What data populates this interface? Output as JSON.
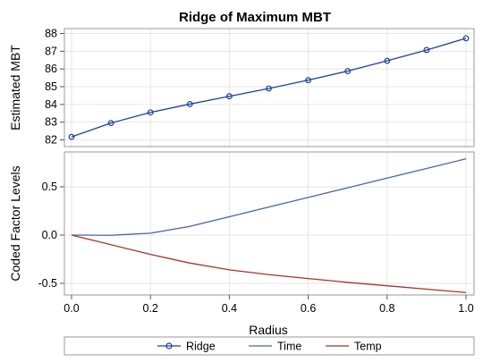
{
  "chart_data": {
    "type": "line",
    "title": "Ridge of Maximum MBT",
    "xlabel": "Radius",
    "xlim": [
      0.0,
      1.0
    ],
    "xticks": [
      0.0,
      0.2,
      0.4,
      0.6,
      0.8,
      1.0
    ],
    "xtick_labels": [
      "0.0",
      "0.2",
      "0.4",
      "0.6",
      "0.8",
      "1.0"
    ],
    "grid": true,
    "legend_position": "bottom",
    "legend": [
      {
        "name": "Ridge",
        "color": "#1f3f9e",
        "marker": "circle"
      },
      {
        "name": "Time",
        "color": "#4a66a6",
        "marker": "none"
      },
      {
        "name": "Temp",
        "color": "#a8322b",
        "marker": "none"
      }
    ],
    "panels": [
      {
        "ylabel": "Estimated MBT",
        "ylim": [
          81.8,
          88.3
        ],
        "yticks": [
          82,
          83,
          84,
          85,
          86,
          87,
          88
        ],
        "ytick_labels": [
          "82",
          "83",
          "84",
          "85",
          "86",
          "87",
          "88"
        ],
        "series": [
          {
            "name": "Ridge",
            "color": "#1f3f9e",
            "marker": "circle",
            "x": [
              0.0,
              0.1,
              0.2,
              0.3,
              0.4,
              0.5,
              0.6,
              0.7,
              0.8,
              0.9,
              1.0
            ],
            "y": [
              82.17,
              82.95,
              83.55,
              84.02,
              84.46,
              84.9,
              85.37,
              85.88,
              86.46,
              87.07,
              87.73
            ]
          }
        ]
      },
      {
        "ylabel": "Coded Factor Levels",
        "ylim": [
          -0.6,
          0.82
        ],
        "yticks": [
          -0.5,
          0.0,
          0.5
        ],
        "ytick_labels": [
          "-0.5",
          "0.0",
          "0.5"
        ],
        "series": [
          {
            "name": "Time",
            "color": "#4a66a6",
            "x": [
              0.0,
              0.1,
              0.2,
              0.3,
              0.4,
              0.5,
              0.6,
              0.7,
              0.8,
              0.9,
              1.0
            ],
            "y": [
              0.0,
              -0.002,
              0.02,
              0.09,
              0.19,
              0.29,
              0.39,
              0.49,
              0.59,
              0.69,
              0.79
            ]
          },
          {
            "name": "Temp",
            "color": "#a8322b",
            "x": [
              0.0,
              0.1,
              0.2,
              0.3,
              0.4,
              0.5,
              0.6,
              0.7,
              0.8,
              0.9,
              1.0
            ],
            "y": [
              0.0,
              -0.1,
              -0.2,
              -0.29,
              -0.36,
              -0.41,
              -0.45,
              -0.49,
              -0.525,
              -0.56,
              -0.595
            ]
          }
        ]
      }
    ]
  }
}
